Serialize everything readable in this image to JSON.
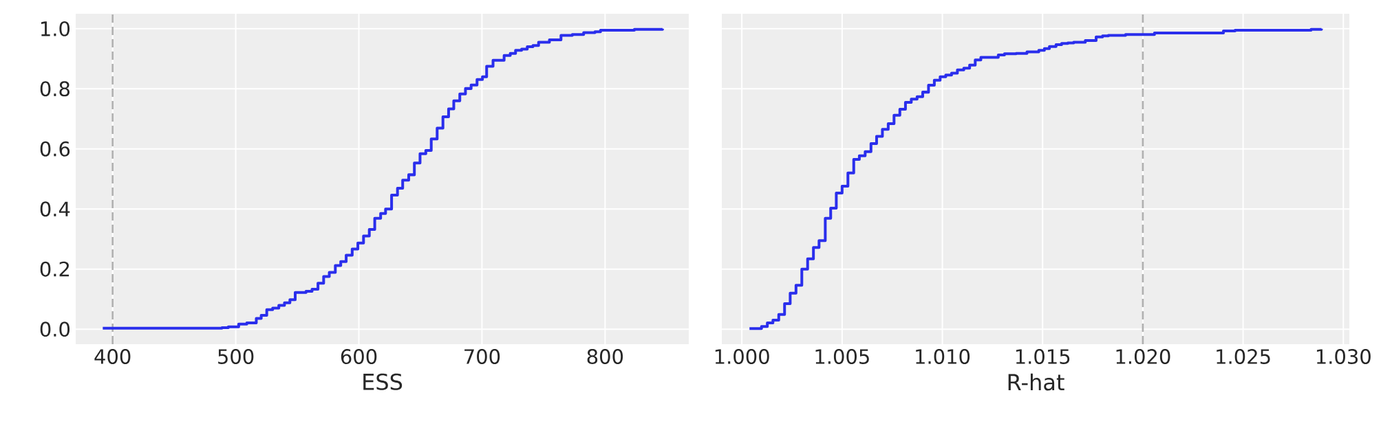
{
  "chart_data": [
    {
      "type": "step",
      "xlabel": "ESS",
      "color": "#2a2eec",
      "grid": true,
      "x": [
        392,
        488.8,
        494,
        502.4,
        509,
        516.7,
        520.7,
        525.2,
        530,
        535,
        539.6,
        544,
        548.3,
        557.1,
        562,
        566.8,
        571.4,
        576,
        580.9,
        585.3,
        589.7,
        594.6,
        599.2,
        603.8,
        608.5,
        612.9,
        617.7,
        621.7,
        626.6,
        631.4,
        635.6,
        640.5,
        645.1,
        649.7,
        654.4,
        658.8,
        663.6,
        668.3,
        672.9,
        677.1,
        682,
        686.6,
        691.2,
        696,
        700.4,
        703.8,
        709,
        718,
        723,
        727.3,
        732.2,
        736.8,
        741.4,
        746,
        754.8,
        764.2,
        773.4,
        782.6,
        791.8,
        796.3,
        823.8,
        846.7
      ],
      "values": [
        0.003,
        0.005,
        0.008,
        0.017,
        0.021,
        0.036,
        0.046,
        0.065,
        0.07,
        0.079,
        0.088,
        0.098,
        0.122,
        0.126,
        0.133,
        0.153,
        0.175,
        0.189,
        0.212,
        0.225,
        0.246,
        0.267,
        0.287,
        0.31,
        0.332,
        0.369,
        0.385,
        0.4,
        0.446,
        0.469,
        0.496,
        0.514,
        0.553,
        0.584,
        0.595,
        0.633,
        0.669,
        0.707,
        0.733,
        0.76,
        0.783,
        0.801,
        0.813,
        0.831,
        0.84,
        0.875,
        0.895,
        0.911,
        0.918,
        0.928,
        0.932,
        0.94,
        0.944,
        0.955,
        0.963,
        0.978,
        0.981,
        0.987,
        0.99,
        0.995,
        0.998,
        1.0
      ],
      "xlim": [
        370,
        868
      ],
      "ylim": [
        -0.05,
        1.05
      ],
      "xticks": [
        400,
        500,
        600,
        700,
        800
      ],
      "yticks": [
        {
          "value": 0,
          "label": "0.0"
        },
        {
          "value": 0.2,
          "label": "0.2"
        },
        {
          "value": 0.4,
          "label": "0.4"
        },
        {
          "value": 0.6,
          "label": "0.6"
        },
        {
          "value": 0.8,
          "label": "0.8"
        },
        {
          "value": 1,
          "label": "1.0"
        }
      ],
      "ref_lines": [
        {
          "axis": "x",
          "value": 400,
          "color": "#b0b0b0",
          "line_style": "dashed"
        }
      ]
    },
    {
      "type": "step",
      "xlabel": "R-hat",
      "color": "#2a2eec",
      "grid": true,
      "tick_labels": "x",
      "x": [
        1.00038,
        1.00098,
        1.00127,
        1.00155,
        1.00184,
        1.00213,
        1.00241,
        1.0027,
        1.00299,
        1.00328,
        1.00357,
        1.00385,
        1.00416,
        1.00443,
        1.00471,
        1.005,
        1.00529,
        1.00558,
        1.00586,
        1.00615,
        1.00644,
        1.00672,
        1.00701,
        1.0073,
        1.00759,
        1.00788,
        1.00816,
        1.00845,
        1.00874,
        1.00902,
        1.00931,
        1.0096,
        1.00989,
        1.01017,
        1.01046,
        1.01075,
        1.01107,
        1.01136,
        1.01164,
        1.01192,
        1.01279,
        1.0131,
        1.01368,
        1.01422,
        1.01481,
        1.01509,
        1.01534,
        1.01567,
        1.01595,
        1.01626,
        1.01655,
        1.01713,
        1.01767,
        1.01799,
        1.01828,
        1.01914,
        1.02058,
        1.02402,
        1.0246,
        1.02839,
        1.02891
      ],
      "values": [
        0.002,
        0.009,
        0.021,
        0.03,
        0.049,
        0.085,
        0.12,
        0.146,
        0.2,
        0.234,
        0.272,
        0.295,
        0.369,
        0.403,
        0.453,
        0.476,
        0.52,
        0.565,
        0.577,
        0.591,
        0.618,
        0.642,
        0.665,
        0.684,
        0.712,
        0.732,
        0.755,
        0.766,
        0.774,
        0.789,
        0.812,
        0.829,
        0.84,
        0.846,
        0.852,
        0.863,
        0.869,
        0.879,
        0.896,
        0.905,
        0.913,
        0.917,
        0.918,
        0.923,
        0.928,
        0.934,
        0.941,
        0.947,
        0.951,
        0.953,
        0.955,
        0.961,
        0.973,
        0.976,
        0.978,
        0.981,
        0.986,
        0.993,
        0.995,
        0.998,
        1.0
      ],
      "xlim": [
        0.999,
        1.0303
      ],
      "ylim": [
        -0.05,
        1.05
      ],
      "yticks": [
        {
          "value": 0,
          "label": null
        },
        {
          "value": 0.2,
          "label": null
        },
        {
          "value": 0.4,
          "label": null
        },
        {
          "value": 0.6,
          "label": null
        },
        {
          "value": 0.8,
          "label": null
        },
        {
          "value": 1,
          "label": null
        }
      ],
      "xticks": [
        {
          "value": 1.0,
          "label": "1.000"
        },
        {
          "value": 1.005,
          "label": "1.005"
        },
        {
          "value": 1.01,
          "label": "1.010"
        },
        {
          "value": 1.015,
          "label": "1.015"
        },
        {
          "value": 1.02,
          "label": "1.020"
        },
        {
          "value": 1.025,
          "label": "1.025"
        },
        {
          "value": 1.03,
          "label": "1.030"
        }
      ],
      "ref_lines": [
        {
          "axis": "x",
          "value": 1.02,
          "color": "#b0b0b0",
          "line_style": "dashed"
        }
      ]
    }
  ]
}
